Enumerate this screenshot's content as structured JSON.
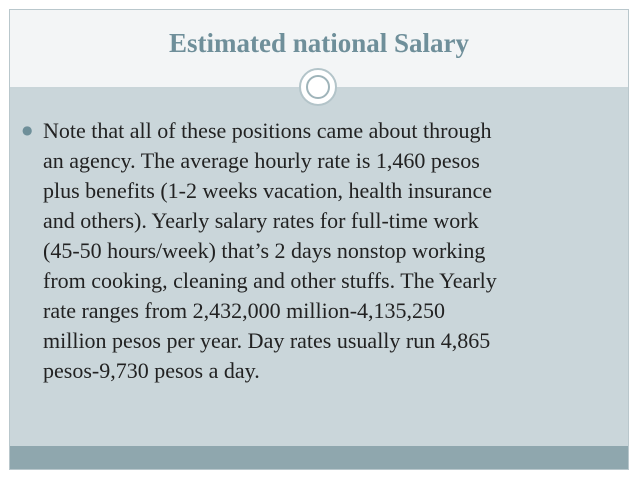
{
  "slide": {
    "title": "Estimated national Salary",
    "bullets": [
      {
        "text": "Note that all of these positions came about through\nan agency. The average hourly rate is 1,460 pesos\nplus benefits (1-2 weeks vacation, health insurance\nand others).  Yearly salary rates for full-time work\n(45-50 hours/week) that’s 2 days nonstop working\nfrom cooking, cleaning and other stuffs. The Yearly\nrate ranges from 2,432,000 million-4,135,250\nmillion pesos  per year. Day rates usually run 4,865\npesos-9,730 pesos a day."
      }
    ]
  },
  "colors": {
    "title": "#6f8f9a",
    "body_background": "#cad6da",
    "bottom_bar": "#8fa7ae",
    "bullet": "#6e8f99"
  },
  "icons": {
    "bullet": "bullet-dot-icon",
    "divider_ornament": "double-circle-ornament-icon"
  }
}
